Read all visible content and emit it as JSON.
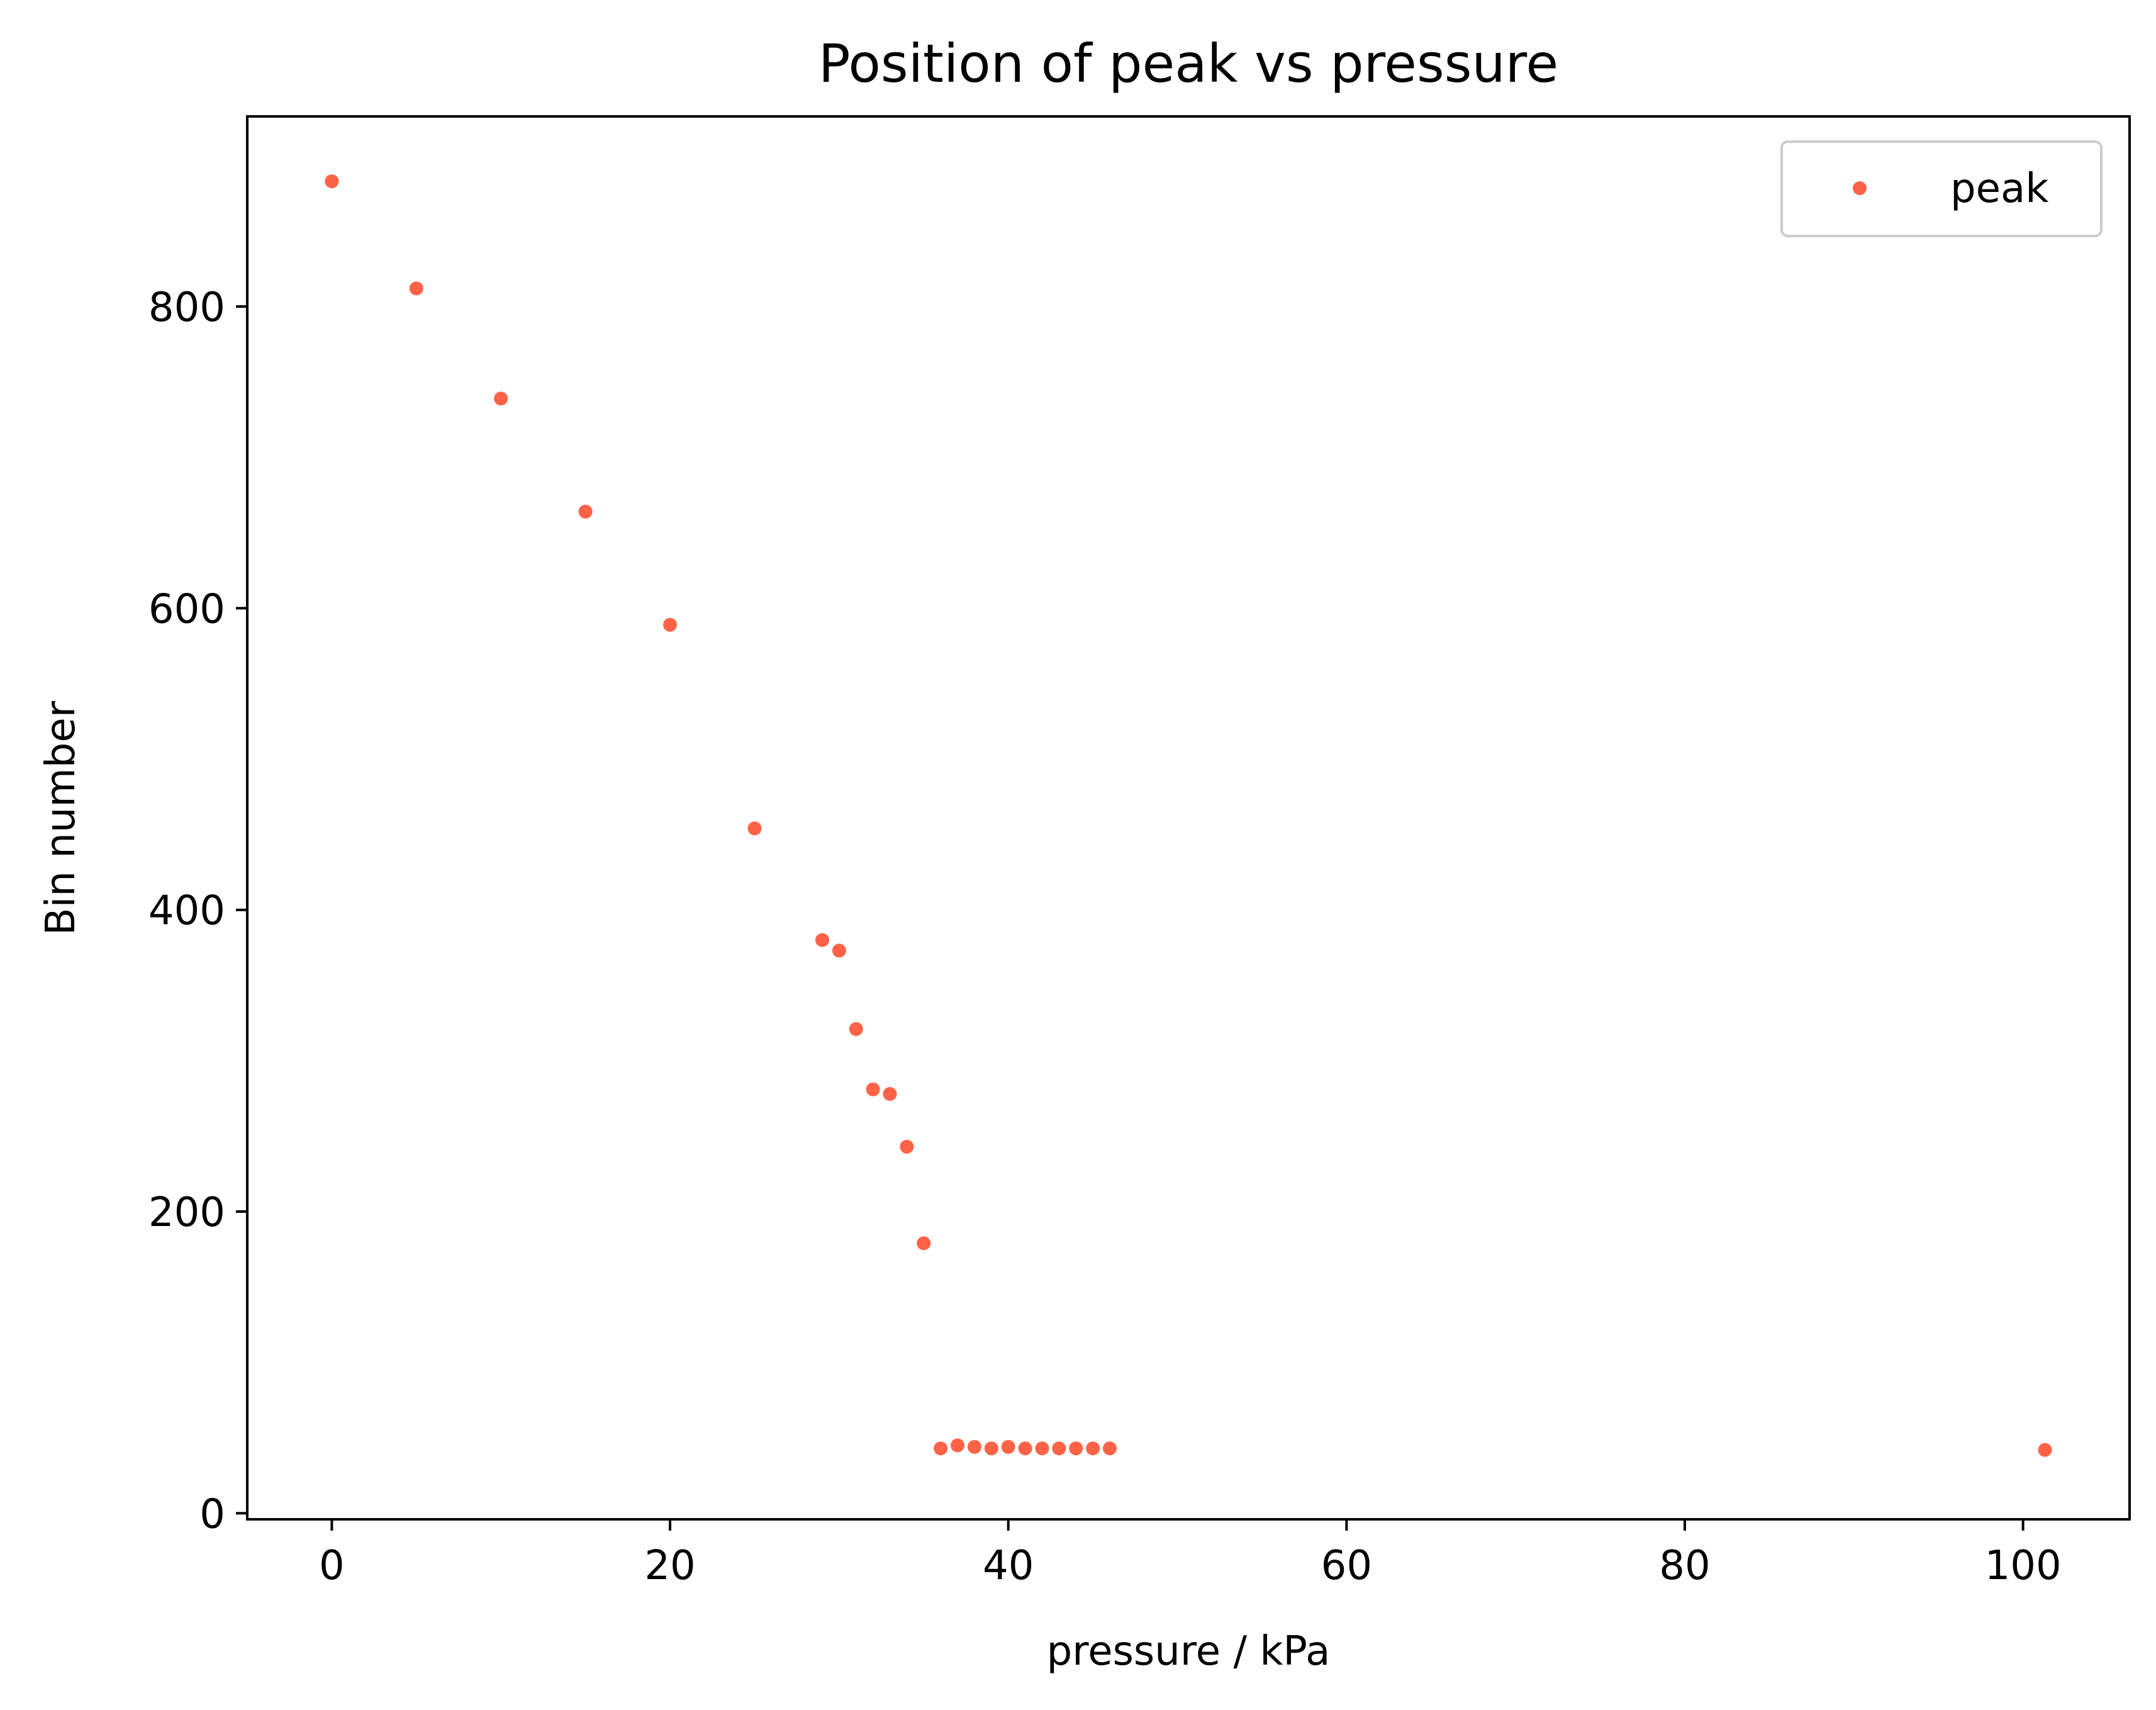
{
  "chart_data": {
    "type": "scatter",
    "title": "Position of peak vs pressure",
    "xlabel": "pressure / kPa",
    "ylabel": "Bin number",
    "xlim": [
      -5,
      106.3
    ],
    "ylim": [
      -4,
      926
    ],
    "xticks": [
      0,
      20,
      40,
      60,
      80,
      100
    ],
    "yticks": [
      0,
      200,
      400,
      600,
      800
    ],
    "grid": false,
    "legend_position": "top-right",
    "series": [
      {
        "name": "peak",
        "color": "#ff6347",
        "marker": "dot",
        "x": [
          0,
          5,
          10,
          15,
          20,
          25,
          29,
          30,
          31,
          32,
          33,
          34,
          35,
          36,
          37,
          38,
          39,
          40,
          41,
          42,
          43,
          44,
          45,
          46,
          101.3
        ],
        "y": [
          883,
          812,
          739,
          664,
          589,
          454,
          380,
          373,
          321,
          281,
          278,
          243,
          179,
          43,
          45,
          44,
          43,
          44,
          43,
          43,
          43,
          43,
          43,
          43,
          42
        ]
      }
    ]
  }
}
